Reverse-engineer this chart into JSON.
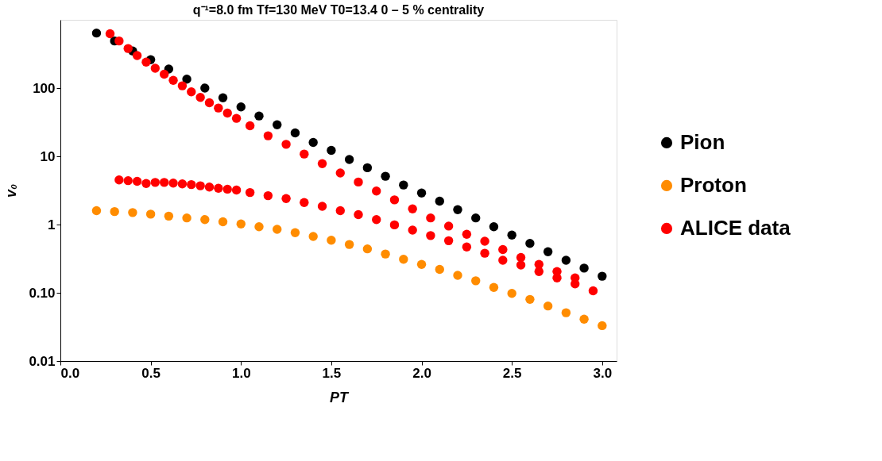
{
  "chart_data": {
    "type": "scatter",
    "title": "q⁻¹=8.0 fm  Tf=130 MeV  T0=13.4    0 – 5 % centrality",
    "xlabel": "PT",
    "ylabel": "v₀",
    "log": "y",
    "xlim": [
      0,
      3.08
    ],
    "ylim": [
      0.01,
      1000
    ],
    "xticks": [
      {
        "value": 0,
        "label": "0.0"
      },
      0.5,
      {
        "value": 1,
        "label": "1.0"
      },
      1.5,
      {
        "value": 2,
        "label": "2.0"
      },
      2.5,
      {
        "value": 3,
        "label": "3.0"
      }
    ],
    "yticks": [
      0.01,
      {
        "value": 0.1,
        "label": "0.10"
      },
      1,
      10,
      100
    ],
    "grid": false,
    "legend": "right",
    "marker": "circle",
    "x": [
      0.2,
      0.3,
      0.4,
      0.5,
      0.6,
      0.7,
      0.8,
      0.9,
      1.0,
      1.1,
      1.2,
      1.3,
      1.4,
      1.5,
      1.6,
      1.7,
      1.8,
      1.9,
      2.0,
      2.1,
      2.2,
      2.3,
      2.4,
      2.5,
      2.6,
      2.7,
      2.8,
      2.9,
      3.0
    ],
    "series": [
      {
        "name": "Pion",
        "color": "#000000",
        "values": [
          640,
          490,
          350,
          260,
          190,
          135,
          100,
          72,
          53,
          39,
          29,
          22,
          16,
          12.2,
          9.0,
          6.8,
          5.1,
          3.8,
          2.9,
          2.2,
          1.65,
          1.25,
          0.93,
          0.7,
          0.53,
          0.4,
          0.3,
          0.23,
          0.175
        ]
      },
      {
        "name": "Proton",
        "color": "#ff8c00",
        "values": [
          1.6,
          1.55,
          1.5,
          1.42,
          1.33,
          1.25,
          1.18,
          1.1,
          1.02,
          0.93,
          0.85,
          0.76,
          0.67,
          0.59,
          0.51,
          0.44,
          0.37,
          0.31,
          0.26,
          0.22,
          0.18,
          0.15,
          0.12,
          0.098,
          0.08,
          0.064,
          0.051,
          0.041,
          0.033
        ]
      },
      {
        "name": "ALICE data",
        "color": "#ff0000",
        "x": [
          0.275,
          0.325,
          0.375,
          0.425,
          0.475,
          0.525,
          0.575,
          0.625,
          0.675,
          0.725,
          0.775,
          0.825,
          0.875,
          0.925,
          0.975,
          1.05,
          1.15,
          1.25,
          1.35,
          1.45,
          1.55,
          1.65,
          1.75,
          1.85,
          1.95,
          2.05,
          2.15,
          2.25,
          2.35,
          2.45,
          2.55,
          2.65,
          2.75,
          2.85,
          2.95,
          0.325,
          0.375,
          0.425,
          0.475,
          0.525,
          0.575,
          0.625,
          0.675,
          0.725,
          0.775,
          0.825,
          0.875,
          0.925,
          0.975,
          1.05,
          1.15,
          1.25,
          1.35,
          1.45,
          1.55,
          1.65,
          1.75,
          1.85,
          1.95,
          2.05,
          2.15,
          2.25,
          2.35,
          2.45,
          2.55,
          2.65,
          2.75,
          2.85
        ],
        "values": [
          625,
          490,
          380,
          300,
          240,
          195,
          160,
          130,
          108,
          88,
          73,
          61,
          51,
          43,
          36,
          28,
          20,
          15,
          10.8,
          7.8,
          5.7,
          4.2,
          3.1,
          2.3,
          1.7,
          1.25,
          0.95,
          0.72,
          0.57,
          0.43,
          0.33,
          0.26,
          0.205,
          0.165,
          0.107,
          4.5,
          4.4,
          4.3,
          4.0,
          4.15,
          4.15,
          4.05,
          3.95,
          3.85,
          3.7,
          3.55,
          3.4,
          3.3,
          3.2,
          2.95,
          2.65,
          2.4,
          2.1,
          1.85,
          1.6,
          1.4,
          1.18,
          0.99,
          0.83,
          0.69,
          0.58,
          0.47,
          0.38,
          0.3,
          0.255,
          0.205,
          0.165,
          0.135
        ]
      }
    ]
  }
}
